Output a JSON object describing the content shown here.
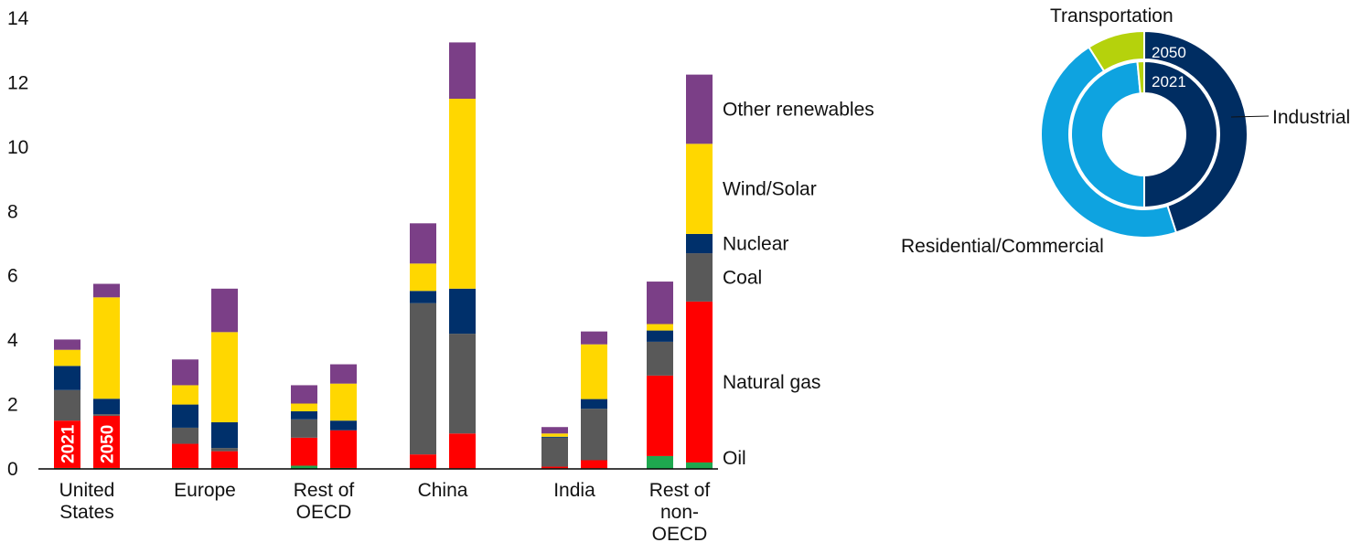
{
  "chart_data": [
    {
      "type": "bar",
      "stacked": true,
      "ylim": [
        0,
        14
      ],
      "yticks": [
        0,
        2,
        4,
        6,
        8,
        10,
        12,
        14
      ],
      "grid": false,
      "categories": [
        "United States",
        "Europe",
        "Rest of OECD",
        "China",
        "India",
        "Rest of non-OECD"
      ],
      "category_lines": [
        [
          "United",
          "States"
        ],
        [
          "Europe"
        ],
        [
          "Rest of",
          "OECD"
        ],
        [
          "China"
        ],
        [
          "India"
        ],
        [
          "Rest of",
          "non-",
          "OECD"
        ]
      ],
      "bar_labels": [
        "2021",
        "2050"
      ],
      "legend_placement": "right",
      "series": [
        {
          "name": "Oil",
          "color": "#1ea84f",
          "values_2021": [
            0.03,
            0.03,
            0.1,
            0.02,
            0.02,
            0.4
          ],
          "values_2050": [
            0.03,
            0.03,
            0.03,
            0.02,
            0.02,
            0.2
          ]
        },
        {
          "name": "Natural gas",
          "color": "#ff0000",
          "values_2021": [
            1.47,
            0.75,
            0.87,
            0.43,
            0.05,
            2.5
          ],
          "values_2050": [
            1.62,
            0.52,
            1.17,
            1.08,
            0.25,
            5.0
          ]
        },
        {
          "name": "Coal",
          "color": "#595959",
          "values_2021": [
            0.95,
            0.5,
            0.57,
            4.7,
            0.9,
            1.05
          ],
          "values_2050": [
            0.05,
            0.1,
            0.0,
            3.1,
            1.6,
            1.5
          ]
        },
        {
          "name": "Nuclear",
          "color": "#00306b",
          "values_2021": [
            0.75,
            0.72,
            0.25,
            0.38,
            0.03,
            0.35
          ],
          "values_2050": [
            0.48,
            0.8,
            0.3,
            1.4,
            0.3,
            0.6
          ]
        },
        {
          "name": "Wind/Solar",
          "color": "#ffd700",
          "values_2021": [
            0.5,
            0.6,
            0.24,
            0.85,
            0.1,
            0.2
          ],
          "values_2050": [
            3.15,
            2.8,
            1.15,
            5.9,
            1.7,
            2.8
          ]
        },
        {
          "name": "Other renewables",
          "color": "#7b3f87",
          "values_2021": [
            0.32,
            0.8,
            0.57,
            1.25,
            0.2,
            1.32
          ],
          "values_2050": [
            0.42,
            1.35,
            0.6,
            1.75,
            0.4,
            2.15
          ]
        }
      ]
    },
    {
      "type": "pie",
      "style": "nested-donut",
      "rings": [
        {
          "label": "2050",
          "position": "outer",
          "values": [
            0.45,
            0.46,
            0.09
          ]
        },
        {
          "label": "2021",
          "position": "inner",
          "values": [
            0.5,
            0.485,
            0.015
          ]
        }
      ],
      "categories": [
        "Industrial",
        "Residential/Commercial",
        "Transportation"
      ],
      "colors": [
        "#002d62",
        "#0ea3e0",
        "#b5d20c"
      ]
    }
  ]
}
